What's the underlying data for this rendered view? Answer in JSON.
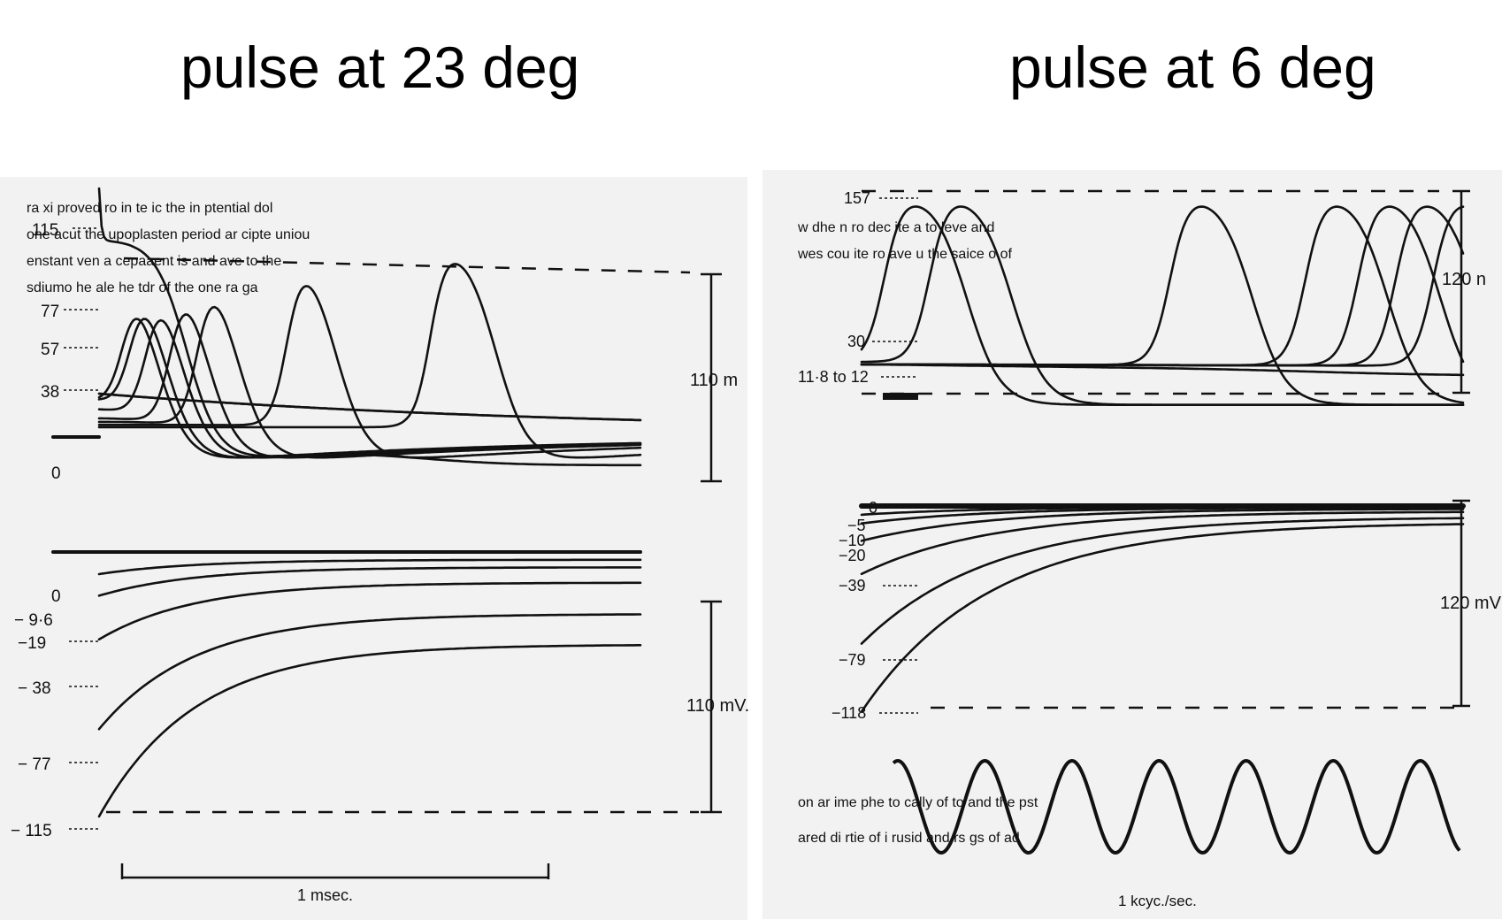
{
  "titles": {
    "left": "pulse at 23 deg",
    "right": "pulse at 6 deg"
  },
  "colors": {
    "ink": "#111111",
    "paper": "#f1f1f1"
  },
  "chart_data": [
    {
      "type": "line",
      "title": "pulse at 23 deg",
      "panels": [
        {
          "name": "depolarizing",
          "labels": [
            "115",
            "77",
            "57",
            "38",
            "0"
          ],
          "scale_label": "110 m",
          "series": [
            {
              "pulse": 115,
              "peak_time": 0.04,
              "x": [
                0,
                0.5,
                1,
                2
              ],
              "y": [
                115,
                94,
                91,
                91
              ]
            },
            {
              "pulse": 77,
              "peak_time": 0.15
            },
            {
              "pulse": 57,
              "peak_time": 0.2
            },
            {
              "pulse": 38,
              "peak_time": 0.3
            },
            {
              "pulse": 25,
              "peak_time": 0.45
            },
            {
              "pulse": 20,
              "peak_time": 0.62
            },
            {
              "pulse": 16,
              "peak_time": 1.18
            },
            {
              "pulse": 13,
              "peak_time": 2.08
            },
            {
              "pulse": 10,
              "peak_time": null
            },
            {
              "pulse": 6,
              "peak_time": null
            }
          ]
        },
        {
          "name": "hyperpolarizing",
          "labels": [
            "0",
            "− 9·6",
            "−19",
            "− 38",
            "− 77",
            "− 115"
          ],
          "scale_label": "110 mV.",
          "series": [
            0,
            -9.6,
            -19,
            -38,
            -77,
            -115
          ]
        }
      ],
      "time_scale_label": "1 msec."
    },
    {
      "type": "line",
      "title": "pulse at 6 deg",
      "panels": [
        {
          "name": "depolarizing",
          "labels": [
            "157",
            "30",
            "11·8 to 12"
          ],
          "scale_label": "120 n",
          "series": [
            {
              "pulse": 157,
              "peak_time": 0.3
            },
            {
              "pulse": 30,
              "peak_time": 0.9
            },
            {
              "pulse": 12,
              "peak_time": 4.1
            },
            {
              "pulse": 11.9,
              "peak_time": 5.9
            },
            {
              "pulse": 11.9,
              "peak_time": 6.6
            },
            {
              "pulse": 11.85,
              "peak_time": 7.1
            },
            {
              "pulse": 11.8,
              "peak_time": 7.6
            },
            {
              "pulse": 11.8,
              "peak_time": null
            }
          ]
        },
        {
          "name": "hyperpolarizing",
          "labels": [
            "0",
            "−5",
            "−10",
            "−20",
            "−39",
            "−79",
            "−118"
          ],
          "scale_label": "120 mV",
          "series": [
            0,
            -5,
            -10,
            -20,
            -39,
            -79,
            -118
          ]
        }
      ],
      "calibration": {
        "label": "1 kcyc./sec.",
        "cycles": 6.5
      }
    }
  ]
}
